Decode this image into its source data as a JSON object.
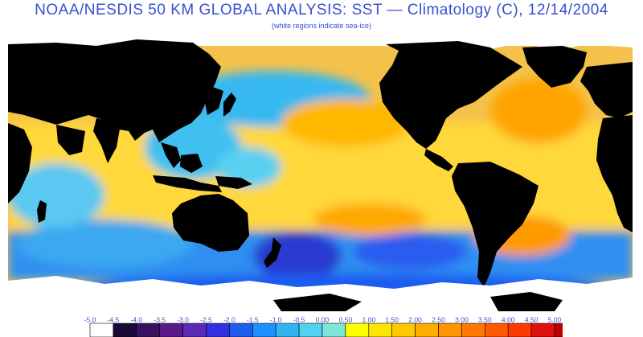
{
  "header": {
    "title": "NOAA/NESDIS 50 KM GLOBAL ANALYSIS: SST — Climatology (C), 12/14/2004",
    "subtitle": "(white regions indicate sea-ice)"
  },
  "map": {
    "type": "global sea surface temperature anomaly map",
    "variable": "SST anomaly vs climatology",
    "units": "C",
    "date": "12/14/2004",
    "land_color": "#000000",
    "sea_ice_color": "#ffffff"
  },
  "colorbar": {
    "labels": [
      "-5.0",
      "-4.5",
      "-4.0",
      "-3.5",
      "-3.0",
      "-2.5",
      "-2.0",
      "-1.5",
      "-1.0",
      "-0.5",
      "0.00",
      "0.50",
      "1.00",
      "1.50",
      "2.00",
      "2.50",
      "3.00",
      "3.50",
      "4.00",
      "4.50",
      "5.00"
    ],
    "colors": [
      "#ffffff",
      "#1a0a3a",
      "#3a1060",
      "#5a1a8a",
      "#5a2ab8",
      "#3030e0",
      "#1e5cf0",
      "#1e90ff",
      "#32b4f0",
      "#50d2f0",
      "#7ee6d8",
      "#ffff00",
      "#ffe400",
      "#ffc800",
      "#ffae00",
      "#ff9400",
      "#ff7800",
      "#ff5a00",
      "#ff3a00",
      "#e01010",
      "#c00000"
    ]
  }
}
